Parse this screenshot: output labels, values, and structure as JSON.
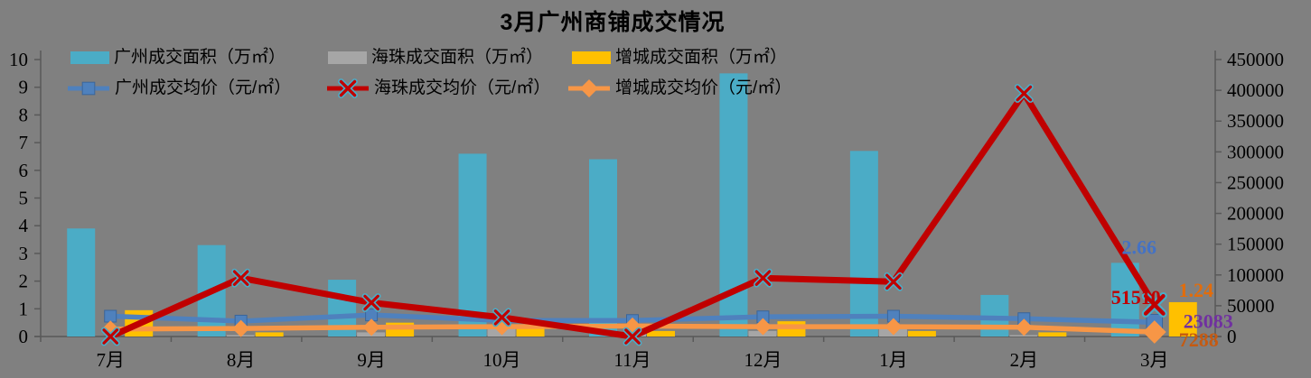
{
  "title": "3月广州商铺成交情况",
  "colors": {
    "background": "#808080",
    "axis": "#595959",
    "text": "#000000",
    "guangzhou_area": "#4BACC6",
    "haizhu_area": "#A6A6A6",
    "zengcheng_area": "#FFC000",
    "guangzhou_price": "#4F81BD",
    "haizhu_price": "#C00000",
    "zengcheng_price": "#F79646"
  },
  "legend": {
    "items": [
      {
        "label": "广州成交面积（万㎡）",
        "series": "guangzhou-area"
      },
      {
        "label": "海珠成交面积（万㎡）",
        "series": "haizhu-area"
      },
      {
        "label": "增城成交面积（万㎡）",
        "series": "zengcheng-area"
      },
      {
        "label": "广州成交均价（元/㎡）",
        "series": "guangzhou-price"
      },
      {
        "label": "海珠成交均价（元/㎡）",
        "series": "haizhu-price"
      },
      {
        "label": "增城成交均价（元/㎡）",
        "series": "zengcheng-price"
      }
    ]
  },
  "chart_data": {
    "type": "bar+line combo, dual axis",
    "title": "3月广州商铺成交情况",
    "categories": [
      "7月",
      "8月",
      "9月",
      "10月",
      "11月",
      "12月",
      "1月",
      "2月",
      "3月"
    ],
    "left_axis": {
      "min": 0,
      "max": 10,
      "step": 1,
      "ticks": [
        0,
        1,
        2,
        3,
        4,
        5,
        6,
        7,
        8,
        9,
        10
      ]
    },
    "right_axis": {
      "min": 0,
      "max": 450000,
      "step": 50000,
      "ticks": [
        0,
        50000,
        100000,
        150000,
        200000,
        250000,
        300000,
        350000,
        400000,
        450000
      ]
    },
    "grid": "off",
    "legend_position": "inside top-left, two rows",
    "series": [
      {
        "key": "guangzhou-area",
        "name": "广州成交面积（万㎡）",
        "type": "bar",
        "axis": "left",
        "color": "#4BACC6",
        "values": [
          3.9,
          3.3,
          2.05,
          6.6,
          6.4,
          9.5,
          6.7,
          1.5,
          2.66
        ]
      },
      {
        "key": "haizhu-area",
        "name": "海珠成交面积（万㎡）",
        "type": "bar",
        "axis": "left",
        "color": "#A6A6A6",
        "values": [
          0,
          0.05,
          0.15,
          0.33,
          0.15,
          0.2,
          0.35,
          0.05,
          0
        ]
      },
      {
        "key": "zengcheng-area",
        "name": "增城成交面积（万㎡）",
        "type": "bar",
        "axis": "left",
        "color": "#FFC000",
        "values": [
          0.95,
          0.15,
          0.5,
          0.3,
          0.2,
          0.55,
          0.2,
          0.15,
          1.24
        ]
      },
      {
        "key": "guangzhou-price",
        "name": "广州成交均价（元/㎡）",
        "type": "line",
        "marker": "square",
        "axis": "right",
        "color": "#4F81BD",
        "values": [
          33000,
          25000,
          35000,
          26000,
          26000,
          32000,
          33000,
          29000,
          23083
        ]
      },
      {
        "key": "haizhu-price",
        "name": "海珠成交均价（元/㎡）",
        "type": "line",
        "marker": "x",
        "axis": "right",
        "color": "#C00000",
        "values": [
          0,
          95000,
          55000,
          31000,
          0,
          95000,
          89000,
          395000,
          51510
        ]
      },
      {
        "key": "zengcheng-price",
        "name": "增城成交均价（元/㎡）",
        "type": "line",
        "marker": "diamond",
        "axis": "right",
        "color": "#F79646",
        "values": [
          12000,
          13000,
          15000,
          16000,
          17000,
          16000,
          16000,
          15000,
          7288
        ]
      }
    ],
    "data_labels": [
      {
        "text": "2.66",
        "series": "guangzhou-area",
        "month": "3月",
        "month_index": 8,
        "color": "#4472C4"
      },
      {
        "text": "1.24",
        "series": "zengcheng-area",
        "month": "3月",
        "month_index": 8,
        "color": "#E36C0A"
      },
      {
        "text": "51510",
        "series": "haizhu-price",
        "month": "3月",
        "month_index": 8,
        "color": "#C00000"
      },
      {
        "text": "23083",
        "series": "guangzhou-price",
        "month": "3月",
        "month_index": 8,
        "color": "#7030A0"
      },
      {
        "text": "7288",
        "series": "zengcheng-price",
        "month": "3月",
        "month_index": 8,
        "color": "#C55A11"
      }
    ]
  }
}
